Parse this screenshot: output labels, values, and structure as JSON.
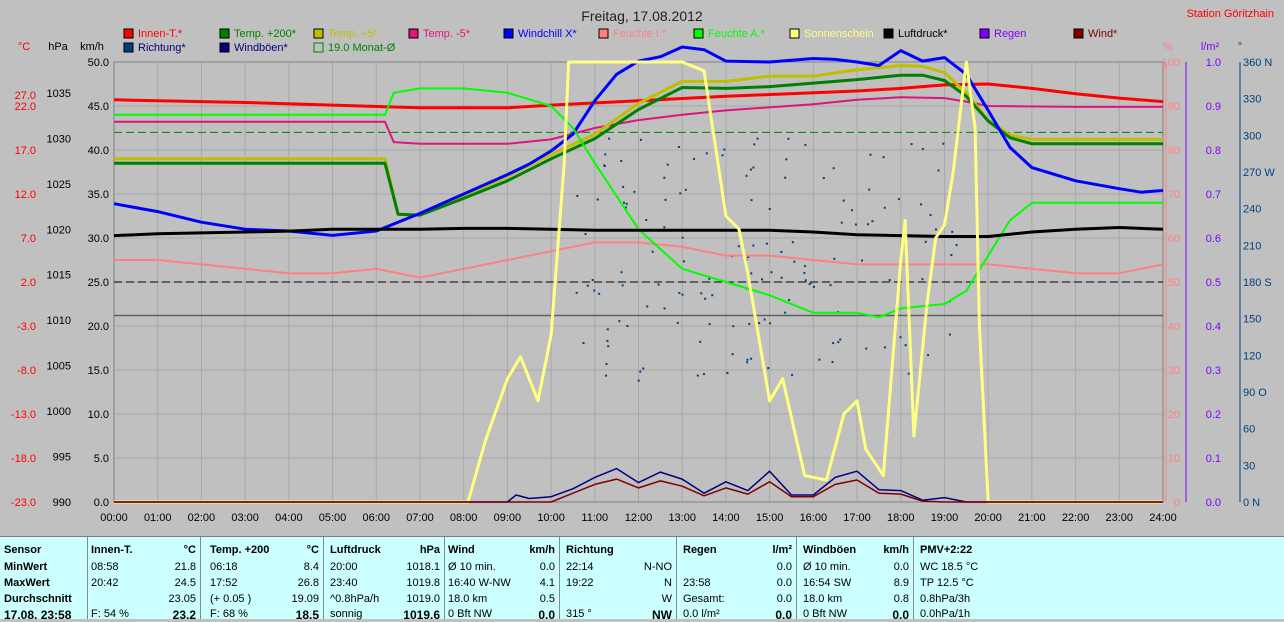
{
  "chart_data": {
    "type": "line",
    "title": "Freitag, 17.08.2012",
    "station": "Station Göritzhain",
    "x_ticks": [
      "00:00",
      "01:00",
      "02:00",
      "03:00",
      "04:00",
      "05:00",
      "06:00",
      "07:00",
      "08:00",
      "09:00",
      "10:00",
      "11:00",
      "12:00",
      "13:00",
      "14:00",
      "15:00",
      "16:00",
      "17:00",
      "18:00",
      "19:00",
      "20:00",
      "21:00",
      "22:00",
      "23:00",
      "24:00"
    ],
    "axes": {
      "temp_c": {
        "label": "°C",
        "ticks": [
          "27.0",
          "22.0",
          "17.0",
          "12.0",
          "7.0",
          "2.0",
          "-3.0",
          "-8.0",
          "-13.0",
          "-18.0",
          "-23.0"
        ]
      },
      "pressure_hpa": {
        "label": "hPa",
        "ticks": [
          "1035",
          "1030",
          "1025",
          "1020",
          "1015",
          "1010",
          "1005",
          "1000",
          "995",
          "990"
        ]
      },
      "wind_kmh": {
        "label": "km/h",
        "ylim": [
          0,
          50
        ],
        "ticks": [
          "50.0",
          "45.0",
          "40.0",
          "35.0",
          "30.0",
          "25.0",
          "20.0",
          "15.0",
          "10.0",
          "5.0",
          "0.0"
        ]
      },
      "humidity_pct": {
        "label": "%",
        "ylim": [
          0,
          100
        ],
        "ticks": [
          "100",
          "90",
          "80",
          "70",
          "60",
          "50",
          "40",
          "30",
          "20",
          "10",
          "0"
        ]
      },
      "rain_lm2": {
        "label": "l/m²",
        "ticks": [
          "1.0",
          "0.9",
          "0.8",
          "0.7",
          "0.6",
          "0.5",
          "0.4",
          "0.3",
          "0.2",
          "0.1",
          "0.0"
        ]
      },
      "direction_deg": {
        "label": "°",
        "ticks": [
          "360 N",
          "330",
          "300",
          "270 W",
          "240",
          "210",
          "180 S",
          "150",
          "120",
          "90 O",
          "60",
          "30",
          "0 N"
        ]
      }
    },
    "legend": [
      {
        "name": "Innen-T.*",
        "color": "#ff0000"
      },
      {
        "name": "Temp. +200*",
        "color": "#008000"
      },
      {
        "name": "Temp. +5*",
        "color": "#bfbf00"
      },
      {
        "name": "Temp. -5*",
        "color": "#e0157b"
      },
      {
        "name": "Windchill X*",
        "color": "#0000ff"
      },
      {
        "name": "Feuchte I.*",
        "color": "#ff8080"
      },
      {
        "name": "Feuchte A.*",
        "color": "#00ff00"
      },
      {
        "name": "Sonnenschein",
        "color": "#ffff80"
      },
      {
        "name": "Luftdruck*",
        "color": "#000000"
      },
      {
        "name": "Regen",
        "color": "#8000ff"
      },
      {
        "name": "Wind*",
        "color": "#800000"
      },
      {
        "name": "Richtung*",
        "color": "#004080"
      },
      {
        "name": "Windböen*",
        "color": "#000080"
      },
      {
        "name": "19.0 Monat-Ø",
        "color": "#008000"
      }
    ],
    "series": [
      {
        "name": "Innen-T.*",
        "axis": "temp_c",
        "color": "#ff0000",
        "width": 3,
        "x": [
          0,
          3,
          5,
          7,
          9,
          10,
          12,
          14,
          17,
          18,
          19,
          20,
          21,
          22,
          23,
          24
        ],
        "y": [
          22.7,
          22.4,
          22.1,
          21.8,
          21.8,
          22.1,
          22.6,
          23.1,
          23.7,
          24.0,
          24.4,
          24.5,
          24.0,
          23.4,
          22.9,
          22.5
        ]
      },
      {
        "name": "Temp. -5*",
        "axis": "temp_c",
        "color": "#e0157b",
        "width": 2,
        "x": [
          0,
          6.2,
          6.4,
          7,
          8,
          9,
          10,
          11,
          12,
          13,
          14,
          16,
          17,
          18,
          19,
          19.5,
          20,
          22,
          24
        ],
        "y": [
          20.2,
          20.2,
          17.9,
          17.7,
          17.7,
          17.7,
          18.2,
          19.5,
          20.4,
          21.0,
          21.5,
          22.2,
          22.7,
          23.0,
          22.9,
          22.5,
          22.0,
          21.9,
          21.9
        ]
      },
      {
        "name": "Temp. +5*",
        "axis": "temp_c",
        "color": "#bfbf00",
        "width": 3,
        "x": [
          0,
          6.2,
          6.5,
          7,
          8,
          9,
          10,
          11,
          12,
          13,
          14,
          15,
          16,
          17,
          18,
          18.5,
          19,
          19.5,
          20,
          20.5,
          21,
          24
        ],
        "y": [
          16.0,
          16.0,
          9.7,
          9.6,
          11.8,
          14.0,
          16.5,
          18.8,
          22.3,
          24.8,
          24.8,
          25.4,
          25.4,
          26.1,
          26.6,
          26.5,
          25.8,
          23.5,
          20.4,
          18.7,
          18.2,
          18.2
        ]
      },
      {
        "name": "Temp. +200*",
        "axis": "temp_c",
        "color": "#008000",
        "width": 3,
        "x": [
          0,
          6.2,
          6.5,
          7,
          8,
          9,
          10,
          11,
          12,
          13,
          14,
          15,
          16,
          17,
          18,
          18.5,
          19,
          19.5,
          20,
          20.5,
          21,
          24
        ],
        "y": [
          15.5,
          15.5,
          9.7,
          9.6,
          11.5,
          13.5,
          16.0,
          18.3,
          21.6,
          24.1,
          24.0,
          24.2,
          24.6,
          25.0,
          25.5,
          25.5,
          24.9,
          23.1,
          20.3,
          18.4,
          17.7,
          17.7
        ]
      },
      {
        "name": "Windchill X*",
        "axis": "temp_c",
        "color": "#0000ff",
        "width": 3,
        "x": [
          0,
          1,
          2,
          3,
          4,
          5,
          6,
          7,
          8,
          9,
          9.5,
          10,
          10.5,
          11,
          11.5,
          12,
          12.5,
          13,
          13.5,
          14,
          15,
          16,
          16.5,
          17,
          17.5,
          18,
          18.5,
          19,
          19.5,
          20,
          20.5,
          21,
          22,
          23,
          23.5,
          24
        ],
        "y": [
          10.9,
          10.0,
          8.8,
          8.0,
          7.8,
          7.3,
          7.8,
          9.8,
          12.0,
          14.2,
          15.4,
          16.9,
          18.8,
          22.6,
          25.6,
          27.1,
          27.6,
          28.7,
          28.4,
          27.1,
          27.0,
          27.4,
          27.3,
          27.0,
          26.6,
          28.3,
          27.1,
          27.5,
          25.6,
          21.5,
          17.3,
          15.0,
          13.5,
          12.6,
          12.2,
          12.4
        ]
      },
      {
        "name": "Feuchte I.*",
        "axis": "humidity_pct",
        "color": "#ff8080",
        "width": 2,
        "x": [
          0,
          1,
          2,
          3,
          4,
          5,
          6,
          7,
          8,
          9,
          10,
          11,
          12,
          13,
          14,
          15,
          16,
          17,
          18,
          19,
          20,
          21,
          22,
          23,
          24
        ],
        "y": [
          55,
          55,
          54,
          53,
          52,
          52,
          53,
          51,
          53,
          55,
          57,
          59,
          59,
          58,
          56,
          56,
          55,
          54,
          54,
          54,
          54,
          53,
          52,
          52,
          54
        ]
      },
      {
        "name": "Feuchte A.*",
        "axis": "humidity_pct",
        "color": "#00ff00",
        "width": 2,
        "x": [
          0,
          6.2,
          6.4,
          7,
          8,
          9,
          10,
          10.5,
          11,
          12,
          13,
          14,
          15,
          16,
          17,
          17.5,
          18,
          19,
          19.5,
          20,
          20.5,
          21,
          22,
          24
        ],
        "y": [
          88,
          88,
          93,
          94,
          94,
          93,
          90,
          85,
          77,
          62,
          53,
          50,
          47,
          43,
          43,
          42,
          44,
          45,
          48,
          56,
          64,
          68,
          68,
          68
        ]
      },
      {
        "name": "Luftdruck*",
        "axis": "pressure_hpa",
        "color": "#000000",
        "width": 3,
        "x": [
          0,
          1,
          2,
          3,
          4,
          5,
          6,
          7,
          8,
          9,
          10,
          11,
          12,
          13,
          14,
          15,
          16,
          17,
          18,
          19,
          20,
          21,
          22,
          23,
          24
        ],
        "y": [
          1019.3,
          1019.5,
          1019.6,
          1019.7,
          1019.8,
          1020.0,
          1020.0,
          1020.0,
          1020.1,
          1020.1,
          1020.0,
          1019.9,
          1019.9,
          1019.9,
          1019.9,
          1019.9,
          1019.7,
          1019.4,
          1019.3,
          1019.2,
          1019.2,
          1019.7,
          1020.0,
          1020.2,
          1020.0
        ]
      },
      {
        "name": "Sonnenschein",
        "axis": "humidity_pct",
        "color": "#ffff80",
        "width": 3,
        "x": [
          0,
          8.1,
          8.5,
          9,
          9.3,
          9.7,
          10,
          10.3,
          10.4,
          11,
          12,
          13,
          13.5,
          14,
          14.3,
          14.5,
          15,
          15.3,
          15.8,
          16.3,
          16.7,
          17,
          17.2,
          17.6,
          18,
          18.1,
          18.3,
          18.6,
          18.8,
          19,
          19.2,
          19.5,
          19.7,
          19.8,
          20,
          24
        ],
        "y": [
          0,
          0,
          14,
          28,
          33,
          23,
          38,
          77,
          100,
          100,
          100,
          100,
          98,
          65,
          62,
          52,
          23,
          28,
          6,
          5,
          20,
          23,
          12,
          6,
          55,
          64,
          15,
          45,
          60,
          63,
          75,
          100,
          85,
          40,
          0,
          0
        ]
      },
      {
        "name": "Windböen*",
        "axis": "wind_kmh",
        "color": "#000080",
        "width": 1.5,
        "x": [
          0,
          9,
          9.2,
          9.5,
          10,
          10.5,
          11,
          11.5,
          12,
          12.5,
          13,
          13.5,
          14,
          14.5,
          15,
          15.5,
          16,
          16.5,
          17,
          17.5,
          18,
          18.5,
          19,
          19.5,
          24
        ],
        "y": [
          0,
          0,
          0.8,
          0.4,
          0.6,
          1.5,
          2.8,
          3.8,
          2.2,
          3.4,
          2.6,
          1.0,
          2.3,
          1.3,
          3.5,
          0.8,
          0.8,
          2.8,
          3.5,
          1.4,
          1.3,
          0.2,
          0.5,
          0,
          0
        ]
      },
      {
        "name": "Wind*",
        "axis": "wind_kmh",
        "color": "#800000",
        "width": 1.5,
        "x": [
          0,
          10,
          10.5,
          11,
          11.5,
          12,
          12.5,
          13,
          13.5,
          14,
          14.5,
          15,
          15.5,
          16,
          16.5,
          17,
          17.5,
          18,
          18.5,
          19,
          24
        ],
        "y": [
          0,
          0,
          1.0,
          2.0,
          2.6,
          1.6,
          2.4,
          1.8,
          0.7,
          1.6,
          0.9,
          2.3,
          0.6,
          0.6,
          2.0,
          2.5,
          1.0,
          0.9,
          0.1,
          0,
          0
        ]
      }
    ],
    "reference_lines": [
      {
        "name": "19.0 Monat-Ø",
        "axis": "temp_c",
        "y": 19.0,
        "color": "#008000",
        "dash": true
      },
      {
        "name": "S",
        "axis": "direction_deg",
        "y": 180,
        "color": "#000000",
        "dash": true
      },
      {
        "name": "",
        "axis": "wind_kmh",
        "y": 21.2,
        "color": "#606060",
        "dash": false
      }
    ],
    "direction_points": {
      "axis": "direction_deg",
      "color": "#004080",
      "x_range": [
        10.5,
        19.5
      ],
      "y_range": [
        100,
        300
      ],
      "count": 150
    }
  },
  "stats": {
    "sensor": {
      "title": "Sensor",
      "rows": [
        "MinWert",
        "MaxWert",
        "Durchschnitt",
        "17.08. 23:58"
      ]
    },
    "innen": {
      "title": "Innen-T.",
      "unit": "°C",
      "rows": [
        [
          "08:58",
          "21.8"
        ],
        [
          "20:42",
          "24.5"
        ],
        [
          "",
          "23.05"
        ],
        [
          "F: 54 %",
          "23.2"
        ]
      ]
    },
    "temp200": {
      "title": "Temp. +200",
      "unit": "°C",
      "rows": [
        [
          "06:18",
          "8.4"
        ],
        [
          "17:52",
          "26.8"
        ],
        [
          "(+ 0.05 )",
          "19.09"
        ],
        [
          "F: 68 %",
          "18.5"
        ]
      ]
    },
    "luftdruck": {
      "title": "Luftdruck",
      "unit": "hPa",
      "rows": [
        [
          "20:00",
          "1018.1"
        ],
        [
          "23:40",
          "1019.8"
        ],
        [
          "^0.8hPa/h",
          "1019.0"
        ],
        [
          "sonnig",
          "1019.6"
        ]
      ]
    },
    "wind": {
      "title": "Wind",
      "unit": "km/h",
      "rows": [
        [
          "Ø 10 min.",
          "0.0"
        ],
        [
          "16:40   W-NW",
          "4.1"
        ],
        [
          "18.0 km",
          "0.5"
        ],
        [
          "0 Bft  NW",
          "0.0"
        ]
      ]
    },
    "richtung": {
      "title": "Richtung",
      "unit": "",
      "rows": [
        [
          "22:14",
          "N-NO"
        ],
        [
          "19:22",
          "N"
        ],
        [
          "",
          "W"
        ],
        [
          "315 °",
          "NW"
        ]
      ]
    },
    "regen": {
      "title": "Regen",
      "unit": "l/m²",
      "rows": [
        [
          "",
          "0.0"
        ],
        [
          "23:58",
          "0.0"
        ],
        [
          "Gesamt:",
          "0.0"
        ],
        [
          "0.0 l/m²",
          "0.0"
        ]
      ]
    },
    "windboeen": {
      "title": "Windböen",
      "unit": "km/h",
      "rows": [
        [
          "Ø 10 min.",
          "0.0"
        ],
        [
          "16:54   SW",
          "8.9"
        ],
        [
          "18.0 km",
          "0.8"
        ],
        [
          "0 Bft  NW",
          "0.0"
        ]
      ]
    },
    "pmv": {
      "title": "PMV+2:22",
      "unit": "",
      "rows": [
        [
          "WC 18.5 °C",
          ""
        ],
        [
          "TP 12.5 °C",
          ""
        ],
        [
          "0.8hPa/3h",
          ""
        ],
        [
          "0.0hPa/1h",
          ""
        ]
      ]
    }
  }
}
